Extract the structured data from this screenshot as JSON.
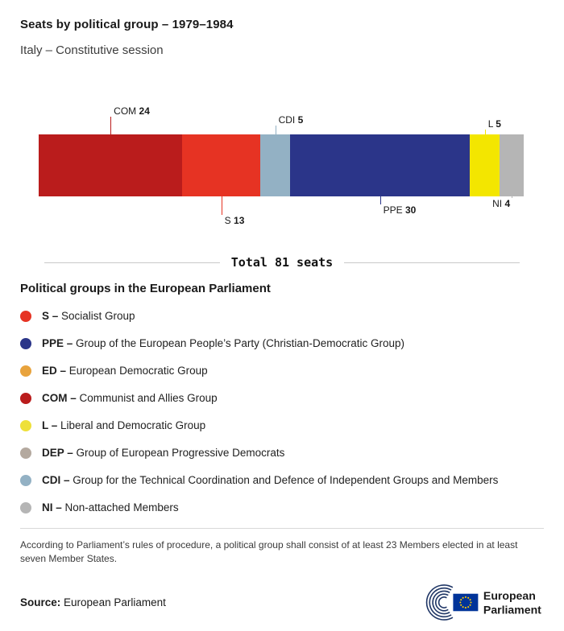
{
  "header": {
    "title": "Seats by political group – 1979–1984",
    "subtitle": "Italy – Constitutive session"
  },
  "chart_data": {
    "type": "bar",
    "variant": "horizontal-stacked-single-bar",
    "title": "Seats by political group – 1979–1984",
    "subtitle": "Italy – Constitutive session",
    "total": 81,
    "total_label": "Total 81 seats",
    "segments": [
      {
        "code": "COM",
        "seats": 24,
        "color": "#ba1c1c",
        "callout": {
          "side": "above",
          "line": 22,
          "align": "left"
        }
      },
      {
        "code": "S",
        "seats": 13,
        "color": "#e63323",
        "callout": {
          "side": "below",
          "line": 23,
          "align": "left"
        }
      },
      {
        "code": "CDI",
        "seats": 5,
        "color": "#93b1c4",
        "callout": {
          "side": "above",
          "line": 11,
          "align": "left"
        }
      },
      {
        "code": "PPE",
        "seats": 30,
        "color": "#2b3589",
        "callout": {
          "side": "below",
          "line": 10,
          "align": "left"
        }
      },
      {
        "code": "L",
        "seats": 5,
        "color": "#f3e600",
        "callout": {
          "side": "above",
          "line": 6,
          "align": "left"
        }
      },
      {
        "code": "NI",
        "seats": 4,
        "color": "#b5b5b5",
        "callout": {
          "side": "below",
          "line": 2,
          "align": "right"
        }
      }
    ]
  },
  "legend": {
    "heading": "Political groups in the European Parliament",
    "items": [
      {
        "abbr": "S –",
        "name": "Socialist Group",
        "color": "#e63323"
      },
      {
        "abbr": "PPE –",
        "name": "Group of the European People’s Party (Christian-Democratic Group)",
        "color": "#2b3589"
      },
      {
        "abbr": "ED –",
        "name": "European Democratic Group",
        "color": "#e8a33d"
      },
      {
        "abbr": "COM –",
        "name": "Communist and Allies Group",
        "color": "#ba1c1c"
      },
      {
        "abbr": "L –",
        "name": "Liberal and Democratic Group",
        "color": "#eee03a"
      },
      {
        "abbr": "DEP –",
        "name": "Group of European Progressive Democrats",
        "color": "#b4a99f"
      },
      {
        "abbr": "CDI –",
        "name": "Group for the Technical Coordination and Defence of Independent Groups and Members",
        "color": "#93b1c4"
      },
      {
        "abbr": "NI –",
        "name": "Non-attached Members",
        "color": "#b5b5b5"
      }
    ]
  },
  "footnote": "According to Parliament’s rules of procedure, a political group shall consist of at least 23 Members elected in at least seven Member States.",
  "source": {
    "label": "Source:",
    "value": "European Parliament"
  },
  "logo": {
    "line1": "European",
    "line2": "Parliament"
  }
}
